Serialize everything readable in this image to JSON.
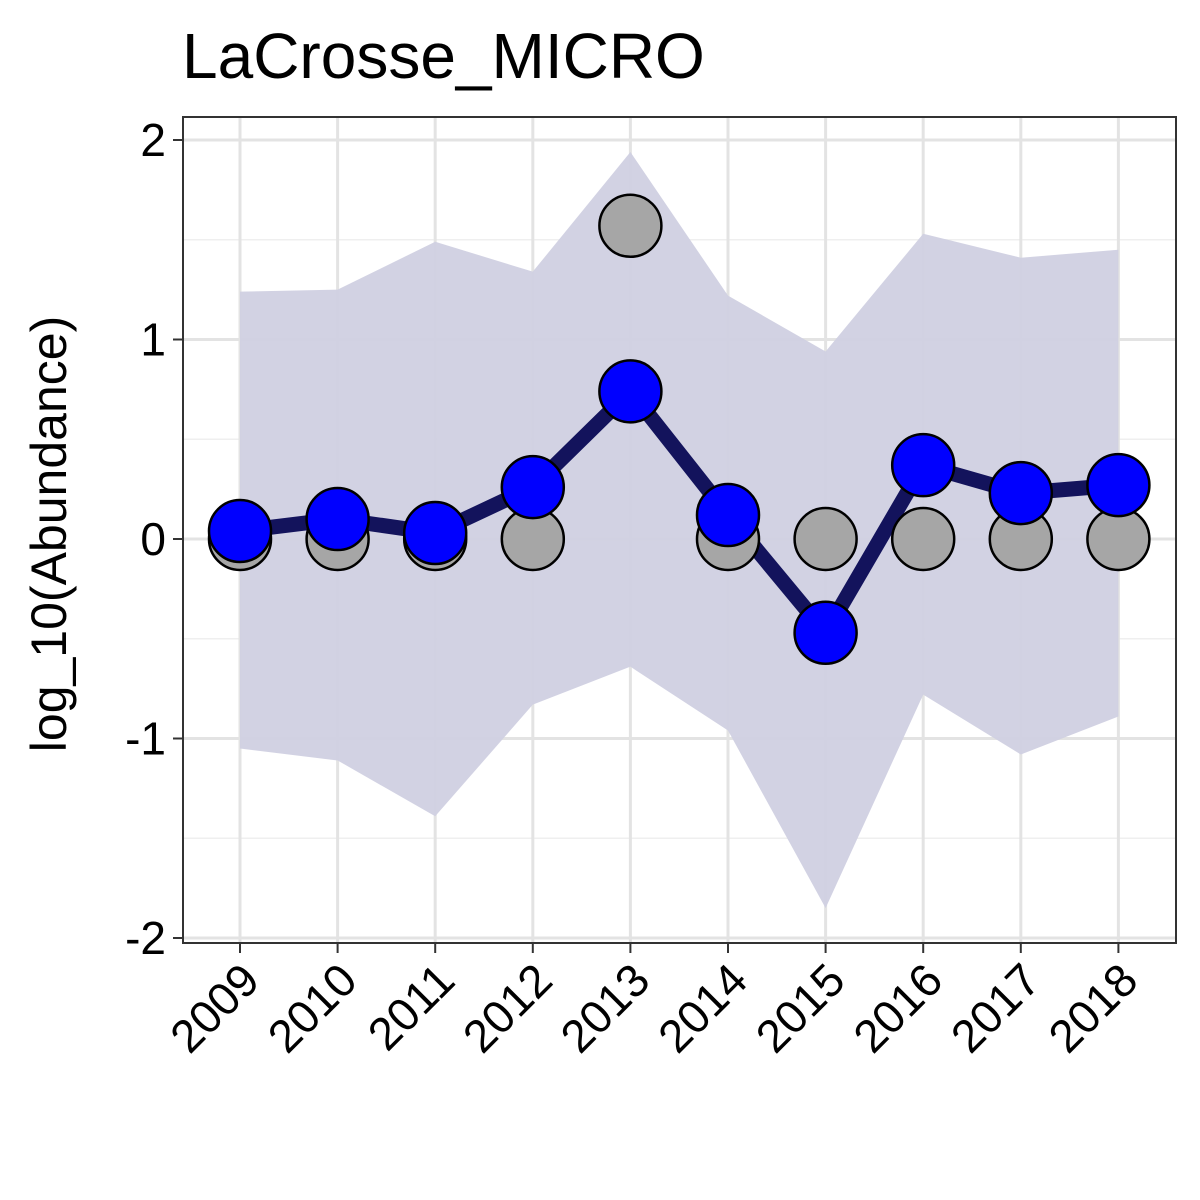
{
  "chart_data": {
    "type": "line",
    "title": "LaCrosse_MICRO",
    "xlabel": "",
    "ylabel": "log_10(Abundance)",
    "x": [
      2009,
      2010,
      2011,
      2012,
      2013,
      2014,
      2015,
      2016,
      2017,
      2018
    ],
    "x_tick_labels": [
      "2009",
      "2010",
      "2011",
      "2012",
      "2013",
      "2014",
      "2015",
      "2016",
      "2017",
      "2018"
    ],
    "y_ticks": [
      2,
      1,
      0,
      -1,
      -2
    ],
    "y_tick_labels": [
      "2",
      "1",
      "0",
      "-1",
      "-2"
    ],
    "ylim": [
      -2.02,
      2.12
    ],
    "grid": true,
    "series": [
      {
        "name": "",
        "kind": "line+points",
        "values": [
          0.04,
          0.1,
          0.03,
          0.26,
          0.74,
          0.12,
          -0.47,
          0.37,
          0.23,
          0.27
        ],
        "line_color": "#13135c",
        "point_color": "#0000ff"
      },
      {
        "name": "",
        "kind": "points",
        "values": [
          0,
          0,
          0,
          0,
          1.57,
          0,
          0,
          0,
          0,
          0
        ],
        "point_color": "#a6a6a6"
      }
    ],
    "band": {
      "lower": [
        -1.05,
        -1.11,
        -1.39,
        -0.83,
        -0.64,
        -0.96,
        -1.85,
        -0.78,
        -1.08,
        -0.89
      ],
      "upper": [
        1.24,
        1.25,
        1.49,
        1.34,
        1.94,
        1.22,
        0.94,
        1.53,
        1.41,
        1.45
      ],
      "color": "#d0d0e1"
    },
    "colors": {
      "panel_border": "#333333",
      "grid": "#e3e3e3",
      "point_outline": "#000000"
    }
  }
}
